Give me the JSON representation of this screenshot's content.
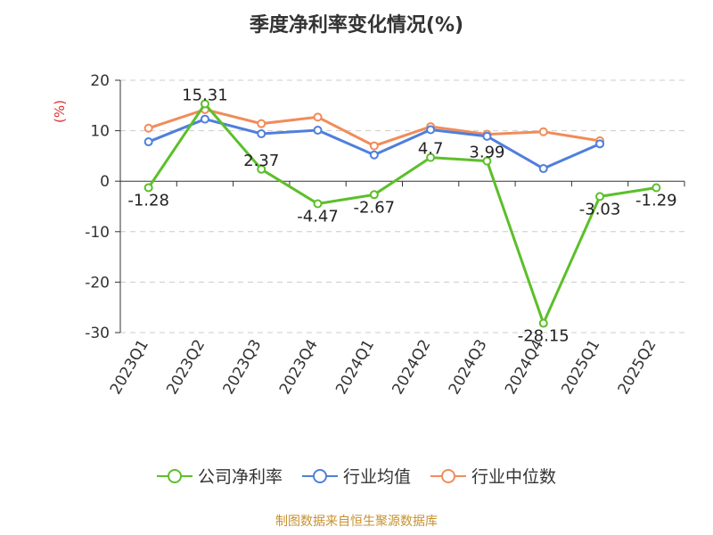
{
  "chart_data": {
    "type": "line",
    "title": "季度净利率变化情况(%)",
    "ylabel": "(%)",
    "ylim": [
      -30,
      20
    ],
    "yticks": [
      20,
      10,
      0,
      -10,
      -20,
      -30
    ],
    "categories": [
      "2023Q1",
      "2023Q2",
      "2023Q3",
      "2023Q4",
      "2024Q1",
      "2024Q2",
      "2024Q3",
      "2024Q4",
      "2025Q1",
      "2025Q2"
    ],
    "grid": true,
    "legend_position": "bottom",
    "series": [
      {
        "name": "公司净利率",
        "color": "#5cbf2a",
        "values": [
          -1.28,
          15.31,
          2.37,
          -4.47,
          -2.67,
          4.7,
          3.99,
          -28.15,
          -3.03,
          -1.29
        ],
        "labels": [
          "-1.28",
          "15.31",
          "2.37",
          "-4.47",
          "-2.67",
          "4.7",
          "3.99",
          "-28.15",
          "-3.03",
          "-1.29"
        ]
      },
      {
        "name": "行业均值",
        "color": "#4f7fdc",
        "values": [
          7.8,
          12.3,
          9.4,
          10.1,
          5.2,
          10.2,
          8.9,
          2.5,
          7.4,
          null
        ]
      },
      {
        "name": "行业中位数",
        "color": "#f08c5a",
        "values": [
          10.5,
          14.2,
          11.4,
          12.7,
          7.0,
          10.8,
          9.3,
          9.8,
          8.0,
          null
        ]
      }
    ]
  },
  "source": "制图数据来自恒生聚源数据库"
}
